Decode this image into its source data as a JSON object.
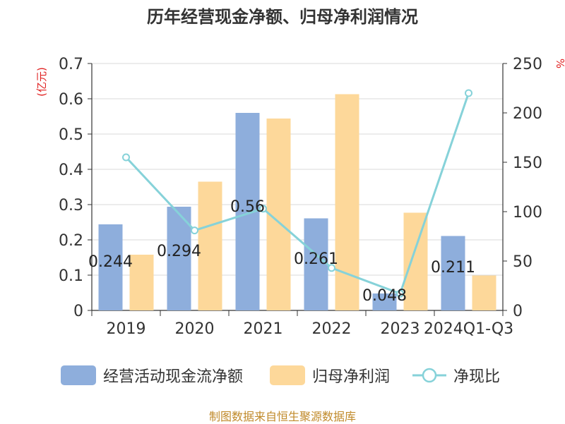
{
  "title": "历年经营现金净额、归母净利润情况",
  "source": "制图数据来自恒生聚源数据库",
  "colors": {
    "cash_flow": "#8eaedc",
    "net_profit": "#fdd89a",
    "ratio": "#86d2d9",
    "axis": "#333333",
    "grid": "#d9d9d9",
    "unit_label": "#e02020"
  },
  "legend": {
    "cash_flow": "经营活动现金流净额",
    "net_profit": "归母净利润",
    "ratio": "净现比"
  },
  "chart_data": {
    "type": "bar",
    "title": "历年经营现金净额、归母净利润情况",
    "categories": [
      "2019",
      "2020",
      "2021",
      "2022",
      "2023",
      "2024Q1-Q3"
    ],
    "y_left": {
      "label": "(亿元)",
      "min": 0,
      "max": 0.7,
      "ticks": [
        "0",
        "0.1",
        "0.2",
        "0.3",
        "0.4",
        "0.5",
        "0.6",
        "0.7"
      ]
    },
    "y_right": {
      "label": "%",
      "min": 0,
      "max": 250,
      "ticks": [
        "0",
        "50",
        "100",
        "150",
        "200",
        "250"
      ]
    },
    "series": [
      {
        "name": "经营活动现金流净额",
        "type": "bar",
        "axis": "left",
        "values": [
          0.244,
          0.294,
          0.56,
          0.261,
          0.048,
          0.211
        ],
        "labels": [
          "0.244",
          "0.294",
          "0.56",
          "0.261",
          "0.048",
          "0.211"
        ]
      },
      {
        "name": "归母净利润",
        "type": "bar",
        "axis": "left",
        "values": [
          0.158,
          0.365,
          0.544,
          0.613,
          0.277,
          0.099
        ]
      },
      {
        "name": "净现比",
        "type": "line",
        "axis": "right",
        "values": [
          155,
          81,
          103,
          43,
          17,
          220
        ]
      }
    ],
    "grid": true,
    "legend_position": "bottom"
  }
}
